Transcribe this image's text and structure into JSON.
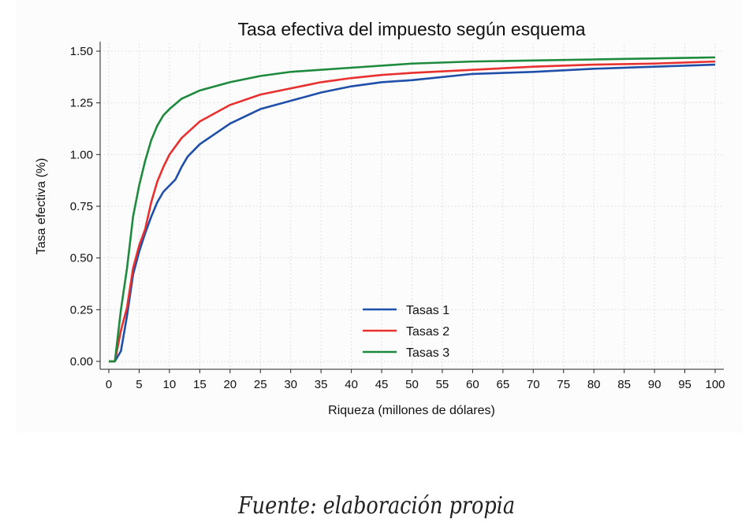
{
  "chart_data": {
    "type": "line",
    "title": "Tasa efectiva del impuesto según esquema",
    "xlabel": "Riqueza (millones de dólares)",
    "ylabel": "Tasa efectiva (%)",
    "xlim": [
      0,
      100
    ],
    "ylim": [
      0,
      1.5
    ],
    "xticks": [
      0,
      5,
      10,
      15,
      20,
      25,
      30,
      35,
      40,
      45,
      50,
      55,
      60,
      65,
      70,
      75,
      80,
      85,
      90,
      95,
      100
    ],
    "yticks": [
      "0.00",
      "0.25",
      "0.50",
      "0.75",
      "1.00",
      "1.25",
      "1.50"
    ],
    "grid": true,
    "legend_position": "bottom-center",
    "series": [
      {
        "name": "Tasas 1",
        "color": "#1f4fa8",
        "x": [
          0,
          1,
          2,
          3,
          4,
          5,
          6,
          7,
          8,
          9,
          10,
          11,
          12,
          13,
          15,
          20,
          25,
          30,
          35,
          40,
          45,
          50,
          60,
          70,
          80,
          90,
          100
        ],
        "y": [
          0,
          0,
          0.05,
          0.22,
          0.42,
          0.53,
          0.62,
          0.7,
          0.77,
          0.82,
          0.85,
          0.88,
          0.94,
          0.99,
          1.05,
          1.15,
          1.22,
          1.26,
          1.3,
          1.33,
          1.35,
          1.36,
          1.39,
          1.4,
          1.415,
          1.425,
          1.435
        ]
      },
      {
        "name": "Tasas 2",
        "color": "#e8302f",
        "x": [
          0,
          1,
          2,
          3,
          4,
          5,
          6,
          7,
          8,
          9,
          10,
          12,
          15,
          20,
          25,
          30,
          35,
          40,
          45,
          50,
          60,
          70,
          80,
          90,
          100
        ],
        "y": [
          0,
          0,
          0.15,
          0.26,
          0.45,
          0.56,
          0.64,
          0.77,
          0.87,
          0.94,
          1.0,
          1.08,
          1.16,
          1.24,
          1.29,
          1.32,
          1.35,
          1.37,
          1.385,
          1.395,
          1.41,
          1.425,
          1.435,
          1.44,
          1.45
        ]
      },
      {
        "name": "Tasas 3",
        "color": "#1e8a3e",
        "x": [
          0,
          1,
          2,
          3,
          4,
          5,
          6,
          7,
          8,
          9,
          10,
          12,
          15,
          20,
          25,
          30,
          40,
          50,
          60,
          70,
          80,
          90,
          100
        ],
        "y": [
          0,
          0,
          0.25,
          0.45,
          0.7,
          0.85,
          0.97,
          1.07,
          1.14,
          1.19,
          1.22,
          1.27,
          1.31,
          1.35,
          1.38,
          1.4,
          1.42,
          1.44,
          1.45,
          1.455,
          1.46,
          1.465,
          1.47
        ]
      }
    ]
  },
  "caption": "Fuente: elaboración propia"
}
